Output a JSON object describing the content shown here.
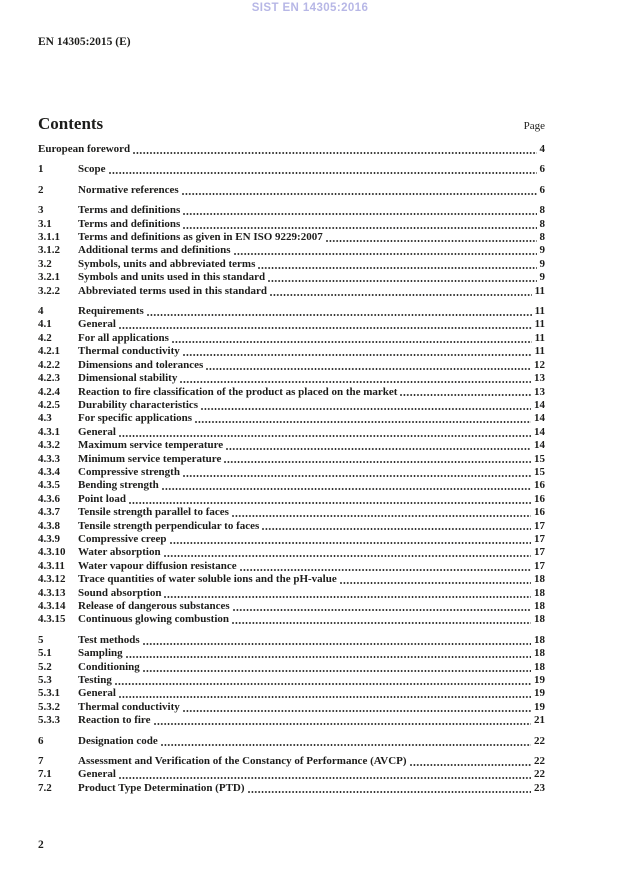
{
  "header": {
    "watermark": "SIST EN 14305:2016",
    "document_reference": "EN 14305:2015 (E)"
  },
  "contents": {
    "title": "Contents",
    "page_column_label": "Page"
  },
  "toc": {
    "groups": [
      {
        "entries": [
          {
            "num": "",
            "title": "European foreword",
            "page": "4"
          }
        ]
      },
      {
        "entries": [
          {
            "num": "1",
            "title": "Scope",
            "page": "6"
          }
        ]
      },
      {
        "entries": [
          {
            "num": "2",
            "title": "Normative references",
            "page": "6"
          }
        ]
      },
      {
        "entries": [
          {
            "num": "3",
            "title": "Terms and definitions",
            "page": "8"
          },
          {
            "num": "3.1",
            "title": "Terms and definitions",
            "page": "8"
          },
          {
            "num": "3.1.1",
            "title": "Terms and definitions as given in EN ISO 9229:2007",
            "page": "8"
          },
          {
            "num": "3.1.2",
            "title": "Additional terms and definitions",
            "page": "9"
          },
          {
            "num": "3.2",
            "title": "Symbols, units and abbreviated terms",
            "page": "9"
          },
          {
            "num": "3.2.1",
            "title": "Symbols and units used in this standard",
            "page": "9"
          },
          {
            "num": "3.2.2",
            "title": "Abbreviated terms used in this standard",
            "page": "11"
          }
        ]
      },
      {
        "entries": [
          {
            "num": "4",
            "title": "Requirements",
            "page": "11"
          },
          {
            "num": "4.1",
            "title": "General",
            "page": "11"
          },
          {
            "num": "4.2",
            "title": "For all applications",
            "page": "11"
          },
          {
            "num": "4.2.1",
            "title": "Thermal conductivity",
            "page": "11"
          },
          {
            "num": "4.2.2",
            "title": "Dimensions and tolerances",
            "page": "12"
          },
          {
            "num": "4.2.3",
            "title": "Dimensional stability",
            "page": "13"
          },
          {
            "num": "4.2.4",
            "title": "Reaction to fire classification of the product as placed on the market",
            "page": "13"
          },
          {
            "num": "4.2.5",
            "title": "Durability characteristics",
            "page": "14"
          },
          {
            "num": "4.3",
            "title": "For specific applications",
            "page": "14"
          },
          {
            "num": "4.3.1",
            "title": "General",
            "page": "14"
          },
          {
            "num": "4.3.2",
            "title": "Maximum service temperature",
            "page": "14"
          },
          {
            "num": "4.3.3",
            "title": "Minimum service temperature",
            "page": "15"
          },
          {
            "num": "4.3.4",
            "title": "Compressive strength",
            "page": "15"
          },
          {
            "num": "4.3.5",
            "title": "Bending strength",
            "page": "16"
          },
          {
            "num": "4.3.6",
            "title": "Point load",
            "page": "16"
          },
          {
            "num": "4.3.7",
            "title": "Tensile strength parallel to faces",
            "page": "16"
          },
          {
            "num": "4.3.8",
            "title": "Tensile strength perpendicular to faces",
            "page": "17"
          },
          {
            "num": "4.3.9",
            "title": "Compressive creep",
            "page": "17"
          },
          {
            "num": "4.3.10",
            "title": "Water absorption",
            "page": "17"
          },
          {
            "num": "4.3.11",
            "title": "Water vapour diffusion resistance",
            "page": "17"
          },
          {
            "num": "4.3.12",
            "title": "Trace quantities of water soluble ions and the pH-value",
            "page": "18"
          },
          {
            "num": "4.3.13",
            "title": "Sound absorption",
            "page": "18"
          },
          {
            "num": "4.3.14",
            "title": "Release of dangerous substances",
            "page": "18"
          },
          {
            "num": "4.3.15",
            "title": "Continuous glowing combustion",
            "page": "18"
          }
        ]
      },
      {
        "entries": [
          {
            "num": "5",
            "title": "Test methods",
            "page": "18"
          },
          {
            "num": "5.1",
            "title": "Sampling",
            "page": "18"
          },
          {
            "num": "5.2",
            "title": "Conditioning",
            "page": "18"
          },
          {
            "num": "5.3",
            "title": "Testing",
            "page": "19"
          },
          {
            "num": "5.3.1",
            "title": "General",
            "page": "19"
          },
          {
            "num": "5.3.2",
            "title": "Thermal conductivity",
            "page": "19"
          },
          {
            "num": "5.3.3",
            "title": "Reaction to fire",
            "page": "21"
          }
        ]
      },
      {
        "entries": [
          {
            "num": "6",
            "title": "Designation code",
            "page": "22"
          }
        ]
      },
      {
        "entries": [
          {
            "num": "7",
            "title": "Assessment and Verification of the Constancy of Performance (AVCP)",
            "page": "22"
          },
          {
            "num": "7.1",
            "title": "General",
            "page": "22"
          },
          {
            "num": "7.2",
            "title": "Product Type Determination (PTD)",
            "page": "23"
          }
        ]
      }
    ]
  },
  "footer": {
    "page_number": "2"
  },
  "colors": {
    "watermark": "#b7b7e6",
    "text": "#1d1d1b",
    "background": "#ffffff"
  }
}
